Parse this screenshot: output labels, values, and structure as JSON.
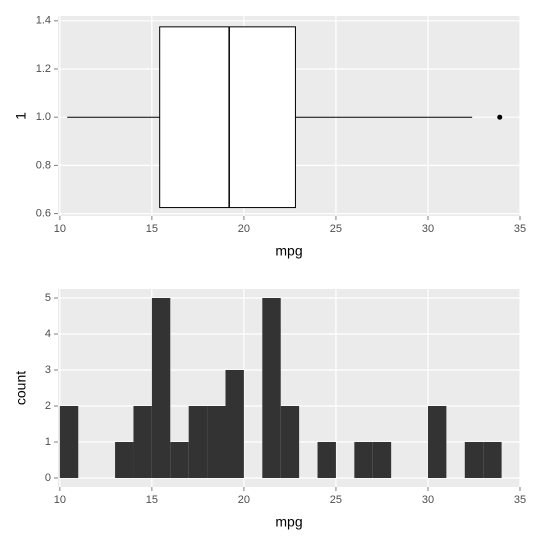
{
  "chart_data": [
    {
      "type": "box",
      "xlabel": "mpg",
      "ylabel": "1",
      "y": 1,
      "min": 10.4,
      "q1": 15.425,
      "median": 19.2,
      "q3": 22.8,
      "max": 32.4,
      "outliers": [
        33.9
      ],
      "xlim": [
        9.9,
        35
      ],
      "xticks": [
        10,
        15,
        20,
        25,
        30,
        35
      ],
      "ylim": [
        0.59,
        1.42
      ],
      "yticks": [
        0.6,
        0.8,
        {
          "value": 1,
          "label": "1.0"
        },
        1.2,
        1.4
      ],
      "grid": true,
      "color": "#ffffff"
    },
    {
      "type": "histogram",
      "xlabel": "mpg",
      "ylabel": "count",
      "bins": [
        10,
        11,
        12,
        13,
        14,
        15,
        16,
        17,
        18,
        19,
        20,
        21,
        22,
        23,
        24,
        25,
        26,
        27,
        28,
        29,
        30,
        31,
        32,
        33,
        34
      ],
      "values": [
        2,
        0,
        0,
        1,
        2,
        5,
        1,
        2,
        2,
        3,
        0,
        5,
        2,
        0,
        1,
        0,
        1,
        1,
        0,
        0,
        2,
        0,
        1,
        1
      ],
      "xlim": [
        9.9,
        35
      ],
      "xticks": [
        10,
        15,
        20,
        25,
        30,
        35
      ],
      "ylim": [
        -0.25,
        5.25
      ],
      "yticks": [
        0,
        1,
        2,
        3,
        4,
        5
      ],
      "grid": true,
      "color": "#333333"
    }
  ]
}
